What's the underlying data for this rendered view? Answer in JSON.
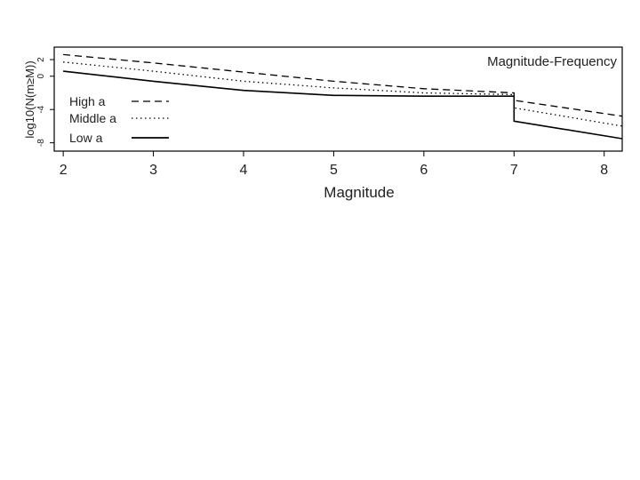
{
  "chart_data": {
    "type": "line",
    "title": "Magnitude-Frequency",
    "xlabel": "Magnitude",
    "ylabel": "log10(N(m≥M))",
    "xlim": [
      1.9,
      8.2
    ],
    "ylim": [
      -9,
      3.5
    ],
    "x_ticks": [
      2,
      3,
      4,
      5,
      6,
      7,
      8
    ],
    "y_ticks": [
      2,
      0,
      -4,
      -8
    ],
    "grid": false,
    "legend_position": "left",
    "series": [
      {
        "name": "High a",
        "style": "dashed",
        "color": "#000000",
        "points": [
          [
            2,
            2.6
          ],
          [
            3,
            1.6
          ],
          [
            4,
            0.5
          ],
          [
            5,
            -0.6
          ],
          [
            6,
            -1.5
          ],
          [
            7,
            -2.0
          ],
          [
            7,
            -2.9
          ],
          [
            8.2,
            -4.8
          ]
        ]
      },
      {
        "name": "Middle a",
        "style": "dotted",
        "color": "#000000",
        "points": [
          [
            2,
            1.7
          ],
          [
            3,
            0.6
          ],
          [
            4,
            -0.6
          ],
          [
            5,
            -1.4
          ],
          [
            6,
            -2.0
          ],
          [
            7,
            -2.2
          ],
          [
            7,
            -3.8
          ],
          [
            8.2,
            -6.0
          ]
        ]
      },
      {
        "name": "Low a",
        "style": "solid",
        "color": "#000000",
        "points": [
          [
            2,
            0.6
          ],
          [
            3,
            -0.6
          ],
          [
            4,
            -1.7
          ],
          [
            5,
            -2.3
          ],
          [
            6,
            -2.4
          ],
          [
            7,
            -2.4
          ],
          [
            7,
            -5.4
          ],
          [
            8.2,
            -7.5
          ]
        ]
      }
    ]
  }
}
